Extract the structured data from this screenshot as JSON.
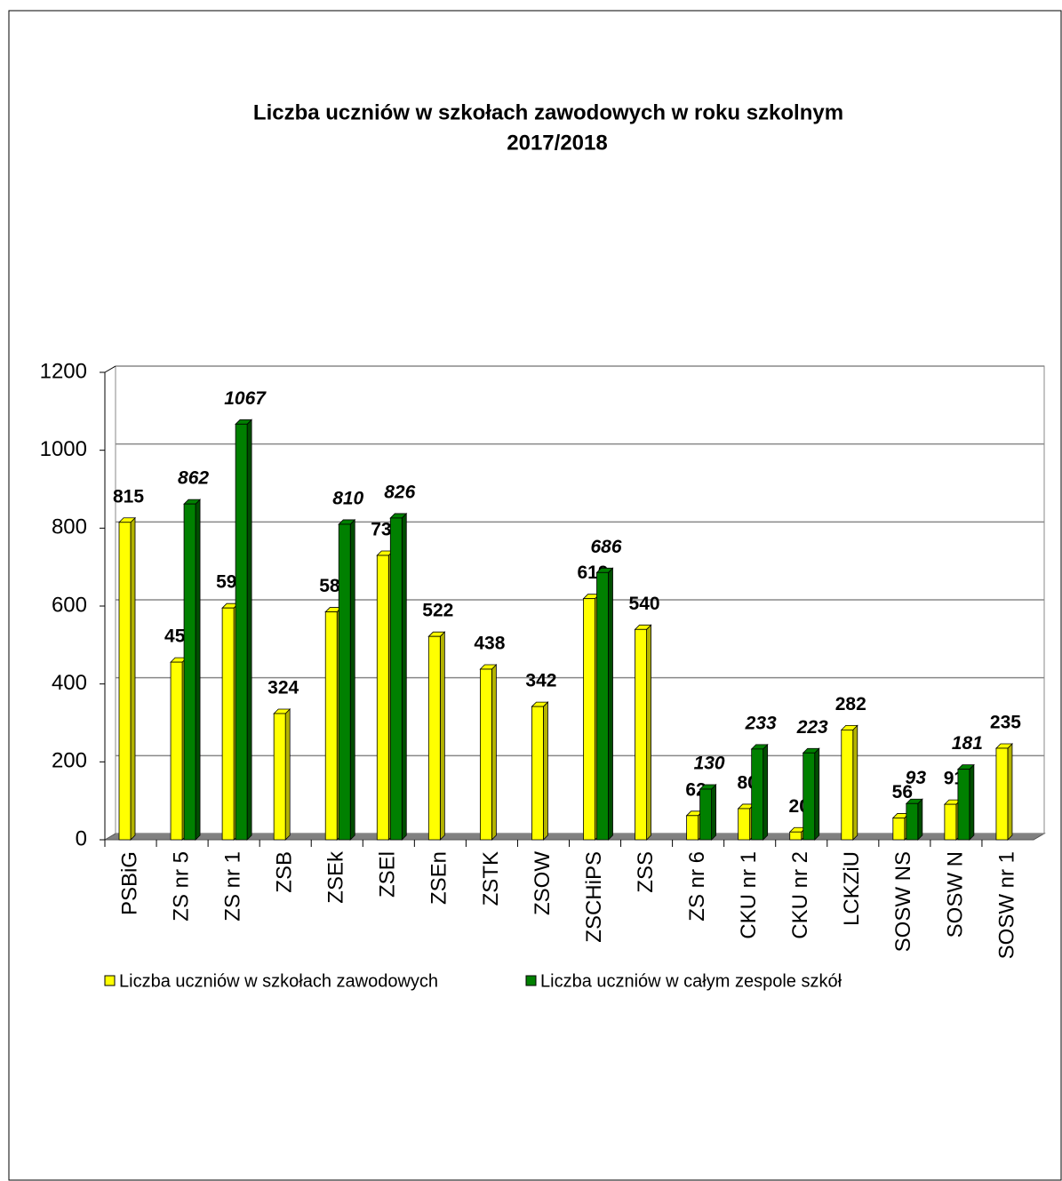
{
  "chart_data": {
    "type": "bar",
    "title": [
      "Liczba uczniów w szkołach zawodowych w roku szkolnym",
      "2017/2018"
    ],
    "categories": [
      "PSBiG",
      "ZS nr 5",
      "ZS nr 1",
      "ZSB",
      "ZSEk",
      "ZSEl",
      "ZSEn",
      "ZSTK",
      "ZSOW",
      "ZSCHiPS",
      "ZSS",
      "ZS nr 6",
      "CKU nr 1",
      "CKU nr 2",
      "LCKZiU",
      "SOSW NS",
      "SOSW N",
      "SOSW nr 1"
    ],
    "series": [
      {
        "name": "Liczba uczniów w szkołach zawodowych",
        "color": "#ffff00",
        "values": [
          815,
          456,
          595,
          324,
          585,
          730,
          522,
          438,
          342,
          619,
          540,
          62,
          80,
          20,
          282,
          56,
          91,
          235
        ]
      },
      {
        "name": "Liczba uczniów w całym zespole szkół",
        "color": "#008000",
        "values": [
          null,
          862,
          1067,
          null,
          810,
          826,
          null,
          null,
          null,
          686,
          null,
          130,
          233,
          223,
          null,
          93,
          181,
          null
        ]
      }
    ],
    "ylim": [
      0,
      1200
    ],
    "yticks": [
      0,
      200,
      400,
      600,
      800,
      1000,
      1200
    ],
    "grid": true,
    "legend": "bottom"
  }
}
